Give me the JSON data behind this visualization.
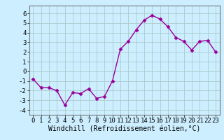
{
  "x": [
    0,
    1,
    2,
    3,
    4,
    5,
    6,
    7,
    8,
    9,
    10,
    11,
    12,
    13,
    14,
    15,
    16,
    17,
    18,
    19,
    20,
    21,
    22,
    23
  ],
  "y": [
    -0.8,
    -1.7,
    -1.7,
    -2.0,
    -3.5,
    -2.2,
    -2.3,
    -1.8,
    -2.8,
    -2.6,
    -1.0,
    2.3,
    3.1,
    4.3,
    5.3,
    5.8,
    5.4,
    4.6,
    3.5,
    3.1,
    2.2,
    3.1,
    3.2,
    2.0
  ],
  "line_color": "#990099",
  "marker": "D",
  "marker_size": 2.5,
  "bg_color": "#cceeff",
  "grid_color": "#aacccc",
  "xlabel": "Windchill (Refroidissement éolien,°C)",
  "xlim": [
    -0.5,
    23.5
  ],
  "ylim": [
    -4.5,
    6.8
  ],
  "yticks": [
    -4,
    -3,
    -2,
    -1,
    0,
    1,
    2,
    3,
    4,
    5,
    6
  ],
  "xticks": [
    0,
    1,
    2,
    3,
    4,
    5,
    6,
    7,
    8,
    9,
    10,
    11,
    12,
    13,
    14,
    15,
    16,
    17,
    18,
    19,
    20,
    21,
    22,
    23
  ],
  "xlabel_fontsize": 7,
  "tick_fontsize": 6.5,
  "line_width": 1.0,
  "font_family": "monospace"
}
